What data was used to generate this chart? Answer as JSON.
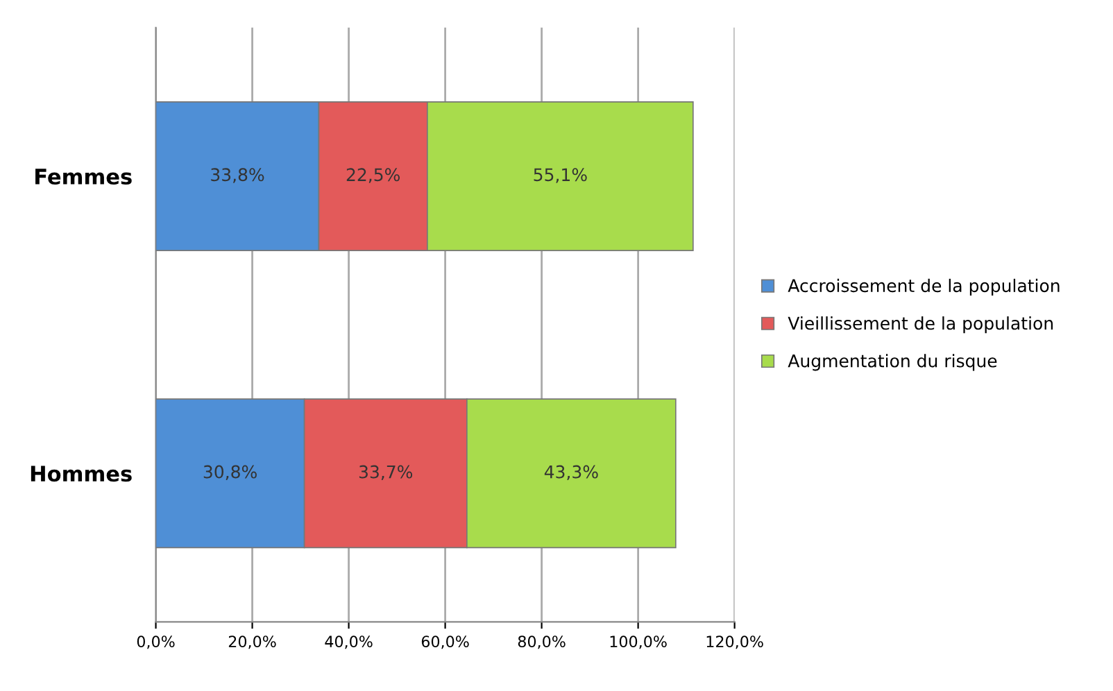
{
  "chart_data": {
    "type": "bar",
    "orientation": "horizontal",
    "stacked": true,
    "categories": [
      "Femmes",
      "Hommes"
    ],
    "series": [
      {
        "name": "Accroissement de la population",
        "color": "#4f8fd6",
        "values": [
          33.8,
          30.8
        ],
        "value_labels": [
          "33,8%",
          "30,8%"
        ]
      },
      {
        "name": "Vieillissement de la population",
        "color": "#e35a5a",
        "values": [
          22.5,
          33.7
        ],
        "value_labels": [
          "22,5%",
          "33,7%"
        ]
      },
      {
        "name": "Augmentation du risque",
        "color": "#a8dc4c",
        "values": [
          55.1,
          43.3
        ],
        "value_labels": [
          "55,1%",
          "43,3%"
        ]
      }
    ],
    "xlim": [
      0,
      120
    ],
    "xticks": [
      {
        "value": 0,
        "label": "0,0%"
      },
      {
        "value": 20,
        "label": "20,0%"
      },
      {
        "value": 40,
        "label": "40,0%"
      },
      {
        "value": 60,
        "label": "60,0%"
      },
      {
        "value": 80,
        "label": "80,0%"
      },
      {
        "value": 100,
        "label": "100,0%"
      },
      {
        "value": 120,
        "label": "120,0%"
      }
    ],
    "grid": "x",
    "legend": "right"
  }
}
